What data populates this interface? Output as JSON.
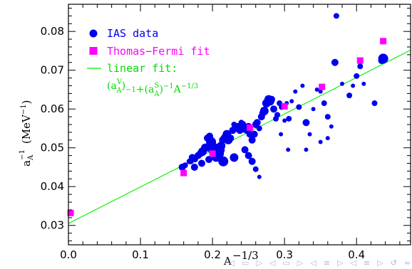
{
  "chart_data": {
    "type": "scatter",
    "xlabel_base": "A",
    "xlabel_sup": "−1/3",
    "ylabel_main": "a",
    "ylabel_sub": "A",
    "ylabel_sup": "−1",
    "ylabel_unit": "(MeV",
    "ylabel_unit_sup": "−1",
    "ylabel_unit_close": ")",
    "xlim": [
      0,
      0.475
    ],
    "ylim": [
      0.025,
      0.087
    ],
    "x_ticks": [
      0,
      0.1,
      0.2,
      0.3,
      0.4
    ],
    "x_tick_labels": [
      "0.0",
      "0.1",
      "0.2",
      "0.3",
      "0.4"
    ],
    "y_ticks": [
      0.03,
      0.04,
      0.05,
      0.06,
      0.07,
      0.08
    ],
    "y_tick_labels": [
      "0.03",
      "0.04",
      "0.05",
      "0.06",
      "0.07",
      "0.08"
    ],
    "legend": {
      "ias": "IAS data",
      "tf": "Thomas−Fermi fit",
      "lin1": "linear fit:",
      "lin2": "(a",
      "lin2b": "V",
      "lin2c": "A",
      "lin2d": ")",
      "lin2e": "−1",
      "lin2f": "+(a",
      "lin2g": "S",
      "lin2h": "A",
      "lin2i": ")",
      "lin2j": "−1",
      "lin2k": "A",
      "lin2l": "−1/3"
    },
    "colors": {
      "ias": "#0000ee",
      "tf": "#ff00ff",
      "linear": "#00ee00"
    },
    "linear_fit": {
      "x": [
        0,
        0.475
      ],
      "y": [
        0.0305,
        0.0752
      ]
    },
    "thomas_fermi": {
      "x": [
        0.003,
        0.16,
        0.2,
        0.252,
        0.3,
        0.352,
        0.405,
        0.437
      ],
      "y": [
        0.0332,
        0.0435,
        0.0485,
        0.0552,
        0.0607,
        0.0657,
        0.0725,
        0.0775
      ]
    },
    "ias_data": {
      "x": [
        0.158,
        0.162,
        0.168,
        0.172,
        0.176,
        0.18,
        0.183,
        0.186,
        0.19,
        0.193,
        0.196,
        0.198,
        0.2,
        0.202,
        0.205,
        0.208,
        0.21,
        0.212,
        0.214,
        0.216,
        0.218,
        0.22,
        0.222,
        0.225,
        0.228,
        0.23,
        0.232,
        0.235,
        0.238,
        0.24,
        0.242,
        0.245,
        0.248,
        0.25,
        0.252,
        0.255,
        0.258,
        0.26,
        0.262,
        0.265,
        0.268,
        0.27,
        0.272,
        0.275,
        0.278,
        0.28,
        0.282,
        0.285,
        0.288,
        0.29,
        0.293,
        0.296,
        0.3,
        0.303,
        0.306,
        0.31,
        0.315,
        0.32,
        0.325,
        0.33,
        0.335,
        0.34,
        0.345,
        0.35,
        0.355,
        0.36,
        0.365,
        0.37,
        0.372,
        0.38,
        0.39,
        0.395,
        0.4,
        0.405,
        0.41,
        0.425,
        0.435,
        0.437,
        0.245,
        0.25,
        0.255,
        0.26,
        0.265,
        0.23,
        0.215,
        0.21,
        0.205,
        0.195,
        0.185,
        0.175,
        0.17,
        0.295,
        0.305,
        0.33,
        0.35,
        0.36
      ],
      "y": [
        0.045,
        0.0455,
        0.0465,
        0.0475,
        0.047,
        0.048,
        0.0485,
        0.049,
        0.05,
        0.0525,
        0.053,
        0.0515,
        0.05,
        0.049,
        0.0485,
        0.05,
        0.0495,
        0.0505,
        0.052,
        0.0525,
        0.053,
        0.0535,
        0.052,
        0.0525,
        0.0545,
        0.056,
        0.055,
        0.0555,
        0.0545,
        0.0565,
        0.056,
        0.055,
        0.0545,
        0.0555,
        0.0535,
        0.052,
        0.0535,
        0.056,
        0.0565,
        0.055,
        0.058,
        0.059,
        0.0595,
        0.0615,
        0.0625,
        0.062,
        0.0625,
        0.06,
        0.0575,
        0.0585,
        0.0615,
        0.0605,
        0.057,
        0.0615,
        0.0575,
        0.062,
        0.0645,
        0.0605,
        0.066,
        0.0565,
        0.0535,
        0.06,
        0.065,
        0.0645,
        0.0615,
        0.058,
        0.0555,
        0.072,
        0.084,
        0.0665,
        0.0635,
        0.066,
        0.0685,
        0.071,
        0.0665,
        0.0615,
        0.0725,
        0.073,
        0.0495,
        0.048,
        0.0465,
        0.0445,
        0.0425,
        0.0475,
        0.0465,
        0.0485,
        0.0475,
        0.047,
        0.046,
        0.045,
        0.0465,
        0.0535,
        0.0495,
        0.0495,
        0.0515,
        0.0525
      ],
      "r": [
        5,
        4,
        4,
        5,
        4,
        5,
        5,
        6,
        6,
        5,
        5,
        7,
        8,
        7,
        6,
        6,
        7,
        6,
        5,
        5,
        5,
        6,
        6,
        5,
        5,
        4,
        5,
        5,
        5,
        4,
        5,
        6,
        5,
        5,
        5,
        5,
        5,
        5,
        5,
        4,
        5,
        5,
        6,
        6,
        6,
        6,
        5,
        5,
        4,
        4,
        4,
        4,
        3,
        3,
        4,
        3,
        3,
        4,
        3,
        5,
        3,
        3,
        3,
        3,
        4,
        4,
        3,
        5,
        4,
        3,
        4,
        3,
        4,
        4,
        3,
        4,
        5,
        7,
        5,
        5,
        5,
        4,
        3,
        6,
        7,
        6,
        6,
        5,
        5,
        5,
        4,
        3,
        3,
        3,
        3,
        3
      ]
    }
  },
  "nav": [
    "◁",
    "▭",
    "▷",
    "◁",
    "▭",
    "▷",
    "◁",
    "≡",
    "▷",
    "◁",
    "≡",
    "▷",
    "↺",
    "≈"
  ]
}
